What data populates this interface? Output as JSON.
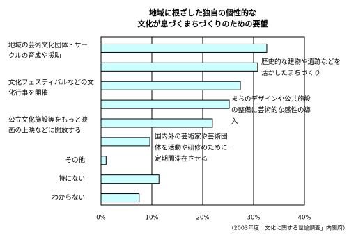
{
  "chart_data": {
    "type": "hbar",
    "title": [
      "地域に根ざした独自の個性的な",
      "文化が息づくまちづくりのための要望"
    ],
    "categories": [
      [
        "地域の芸術文化団体・サー",
        "クルの育成や援助"
      ],
      [
        "歴史的な建物や遺跡などを",
        "活かしたまちづくり"
      ],
      [
        "文化フェスティバルなどの文",
        "化行事を開催"
      ],
      [
        "まちのデザインや公共施設",
        "の整備に芸術的な感性の導",
        "入"
      ],
      [
        "公立文化施設等をもっと映",
        "画の上映などに開放する"
      ],
      [
        "国内外の芸術家や芸術団",
        "体を活動や研修のために一",
        "定期間滞在させる"
      ],
      [
        "その他"
      ],
      [
        "特にない"
      ],
      [
        "わからない"
      ]
    ],
    "values": [
      32.6,
      30.8,
      27.4,
      25.2,
      21.9,
      9.6,
      1.0,
      11.4,
      7.5
    ],
    "color": "#ccffff",
    "xlim": [
      0,
      40
    ],
    "xticks": [
      {
        "value": 0,
        "label": "0%"
      },
      {
        "value": 10,
        "label": "10%"
      },
      {
        "value": 20,
        "label": "20%"
      },
      {
        "value": 30,
        "label": "30%"
      },
      {
        "value": 40,
        "label": "40%"
      }
    ],
    "grid": true,
    "source": "（2003年度「文化に関する世論調査」内閣府）"
  }
}
